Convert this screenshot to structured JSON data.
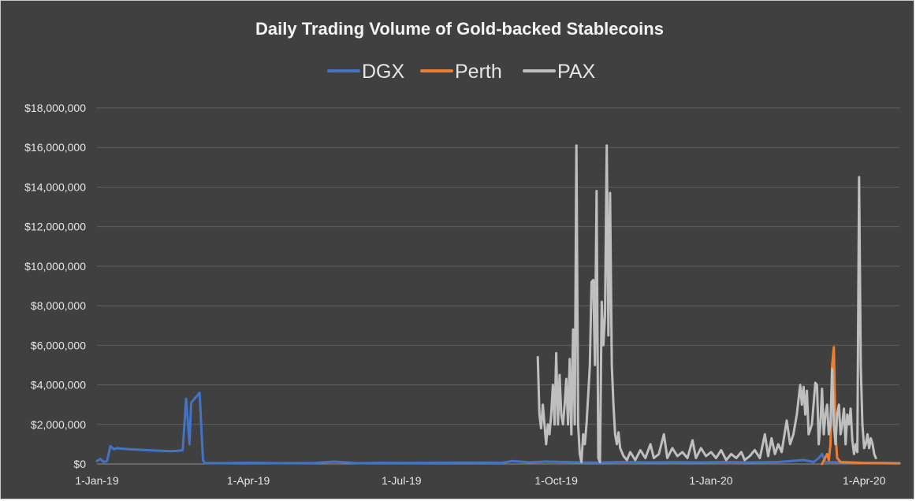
{
  "chart_data": {
    "type": "line",
    "title": "Daily Trading Volume of Gold-backed Stablecoins",
    "xlabel": "",
    "ylabel": "",
    "x_range": [
      "2019-01-01",
      "2020-04-22"
    ],
    "ylim": [
      0,
      18000000
    ],
    "grid": true,
    "legend_position": "top",
    "y_ticks": [
      0,
      2000000,
      4000000,
      6000000,
      8000000,
      10000000,
      12000000,
      14000000,
      16000000,
      18000000
    ],
    "y_tick_labels": [
      "$0",
      "$2,000,000",
      "$4,000,000",
      "$6,000,000",
      "$8,000,000",
      "$10,000,000",
      "$12,000,000",
      "$14,000,000",
      "$16,000,000",
      "$18,000,000"
    ],
    "x_ticks": [
      "2019-01-01",
      "2019-04-01",
      "2019-07-01",
      "2019-10-01",
      "2020-01-01",
      "2020-04-01"
    ],
    "x_tick_labels": [
      "1-Jan-19",
      "1-Apr-19",
      "1-Jul-19",
      "1-Oct-19",
      "1-Jan-20",
      "1-Apr-20"
    ],
    "series": [
      {
        "name": "DGX",
        "color": "#4472C4",
        "points": [
          [
            "2019-01-01",
            150000
          ],
          [
            "2019-01-03",
            250000
          ],
          [
            "2019-01-05",
            100000
          ],
          [
            "2019-01-07",
            150000
          ],
          [
            "2019-01-09",
            900000
          ],
          [
            "2019-01-11",
            750000
          ],
          [
            "2019-01-13",
            800000
          ],
          [
            "2019-01-15",
            780000
          ],
          [
            "2019-01-20",
            750000
          ],
          [
            "2019-01-25",
            730000
          ],
          [
            "2019-01-30",
            700000
          ],
          [
            "2019-02-04",
            680000
          ],
          [
            "2019-02-09",
            660000
          ],
          [
            "2019-02-14",
            650000
          ],
          [
            "2019-02-18",
            660000
          ],
          [
            "2019-02-21",
            700000
          ],
          [
            "2019-02-23",
            3300000
          ],
          [
            "2019-02-25",
            1000000
          ],
          [
            "2019-02-26",
            3100000
          ],
          [
            "2019-02-28",
            3300000
          ],
          [
            "2019-03-02",
            3500000
          ],
          [
            "2019-03-03",
            3600000
          ],
          [
            "2019-03-05",
            200000
          ],
          [
            "2019-03-06",
            50000
          ],
          [
            "2019-03-15",
            40000
          ],
          [
            "2019-04-01",
            60000
          ],
          [
            "2019-04-20",
            40000
          ],
          [
            "2019-05-10",
            50000
          ],
          [
            "2019-05-22",
            120000
          ],
          [
            "2019-06-05",
            40000
          ],
          [
            "2019-06-20",
            60000
          ],
          [
            "2019-07-01",
            50000
          ],
          [
            "2019-07-20",
            60000
          ],
          [
            "2019-08-10",
            70000
          ],
          [
            "2019-08-30",
            60000
          ],
          [
            "2019-09-05",
            150000
          ],
          [
            "2019-09-15",
            80000
          ],
          [
            "2019-09-25",
            120000
          ],
          [
            "2019-10-05",
            100000
          ],
          [
            "2019-10-15",
            80000
          ],
          [
            "2019-10-25",
            70000
          ],
          [
            "2019-11-10",
            100000
          ],
          [
            "2019-11-25",
            80000
          ],
          [
            "2019-12-10",
            90000
          ],
          [
            "2019-12-25",
            80000
          ],
          [
            "2020-01-10",
            100000
          ],
          [
            "2020-01-25",
            80000
          ],
          [
            "2020-02-10",
            100000
          ],
          [
            "2020-02-25",
            200000
          ],
          [
            "2020-03-02",
            100000
          ],
          [
            "2020-03-05",
            300000
          ],
          [
            "2020-03-07",
            500000
          ],
          [
            "2020-03-09",
            100000
          ],
          [
            "2020-03-20",
            80000
          ],
          [
            "2020-04-01",
            60000
          ],
          [
            "2020-04-22",
            50000
          ]
        ]
      },
      {
        "name": "Perth",
        "color": "#ED7D31",
        "points": [
          [
            "2020-03-07",
            0
          ],
          [
            "2020-03-10",
            500000
          ],
          [
            "2020-03-11",
            200000
          ],
          [
            "2020-03-12",
            1000000
          ],
          [
            "2020-03-13",
            5000000
          ],
          [
            "2020-03-14",
            5900000
          ],
          [
            "2020-03-15",
            1500000
          ],
          [
            "2020-03-16",
            300000
          ],
          [
            "2020-03-18",
            100000
          ],
          [
            "2020-04-01",
            50000
          ],
          [
            "2020-04-22",
            30000
          ]
        ]
      },
      {
        "name": "PAX",
        "color": "#BFBFBF",
        "points": [
          [
            "2019-09-20",
            5400000
          ],
          [
            "2019-09-21",
            2500000
          ],
          [
            "2019-09-22",
            1800000
          ],
          [
            "2019-09-23",
            3000000
          ],
          [
            "2019-09-24",
            2000000
          ],
          [
            "2019-09-25",
            1000000
          ],
          [
            "2019-09-26",
            2000000
          ],
          [
            "2019-09-27",
            1500000
          ],
          [
            "2019-09-28",
            2500000
          ],
          [
            "2019-09-29",
            4000000
          ],
          [
            "2019-09-30",
            2000000
          ],
          [
            "2019-10-01",
            5600000
          ],
          [
            "2019-10-02",
            2000000
          ],
          [
            "2019-10-03",
            4500000
          ],
          [
            "2019-10-04",
            2500000
          ],
          [
            "2019-10-05",
            2000000
          ],
          [
            "2019-10-06",
            3000000
          ],
          [
            "2019-10-07",
            4300000
          ],
          [
            "2019-10-08",
            2000000
          ],
          [
            "2019-10-09",
            5300000
          ],
          [
            "2019-10-10",
            1500000
          ],
          [
            "2019-10-11",
            6800000
          ],
          [
            "2019-10-12",
            2000000
          ],
          [
            "2019-10-13",
            16100000
          ],
          [
            "2019-10-14",
            2000000
          ],
          [
            "2019-10-15",
            500000
          ],
          [
            "2019-10-16",
            100000
          ],
          [
            "2019-10-17",
            1500000
          ],
          [
            "2019-10-18",
            1000000
          ],
          [
            "2019-10-19",
            2000000
          ],
          [
            "2019-10-20",
            3500000
          ],
          [
            "2019-10-21",
            5000000
          ],
          [
            "2019-10-22",
            9200000
          ],
          [
            "2019-10-23",
            9300000
          ],
          [
            "2019-10-24",
            5000000
          ],
          [
            "2019-10-25",
            13800000
          ],
          [
            "2019-10-26",
            300000
          ],
          [
            "2019-10-27",
            100000
          ],
          [
            "2019-10-28",
            8200000
          ],
          [
            "2019-10-29",
            6000000
          ],
          [
            "2019-10-30",
            7500000
          ],
          [
            "2019-10-31",
            16100000
          ],
          [
            "2019-11-01",
            6500000
          ],
          [
            "2019-11-02",
            13700000
          ],
          [
            "2019-11-03",
            5000000
          ],
          [
            "2019-11-04",
            3000000
          ],
          [
            "2019-11-05",
            1500000
          ],
          [
            "2019-11-06",
            1000000
          ],
          [
            "2019-11-07",
            1600000
          ],
          [
            "2019-11-08",
            800000
          ],
          [
            "2019-11-10",
            400000
          ],
          [
            "2019-11-12",
            200000
          ],
          [
            "2019-11-14",
            600000
          ],
          [
            "2019-11-17",
            200000
          ],
          [
            "2019-11-20",
            700000
          ],
          [
            "2019-11-23",
            300000
          ],
          [
            "2019-11-26",
            1000000
          ],
          [
            "2019-11-28",
            300000
          ],
          [
            "2019-12-01",
            500000
          ],
          [
            "2019-12-04",
            1500000
          ],
          [
            "2019-12-06",
            300000
          ],
          [
            "2019-12-09",
            800000
          ],
          [
            "2019-12-12",
            400000
          ],
          [
            "2019-12-15",
            600000
          ],
          [
            "2019-12-18",
            300000
          ],
          [
            "2019-12-21",
            1200000
          ],
          [
            "2019-12-23",
            300000
          ],
          [
            "2019-12-26",
            800000
          ],
          [
            "2019-12-29",
            400000
          ],
          [
            "2020-01-01",
            600000
          ],
          [
            "2020-01-04",
            300000
          ],
          [
            "2020-01-07",
            700000
          ],
          [
            "2020-01-10",
            200000
          ],
          [
            "2020-01-13",
            500000
          ],
          [
            "2020-01-16",
            300000
          ],
          [
            "2020-01-19",
            600000
          ],
          [
            "2020-01-21",
            200000
          ],
          [
            "2020-01-24",
            400000
          ],
          [
            "2020-01-27",
            700000
          ],
          [
            "2020-01-30",
            300000
          ],
          [
            "2020-02-02",
            1500000
          ],
          [
            "2020-02-04",
            400000
          ],
          [
            "2020-02-06",
            1300000
          ],
          [
            "2020-02-08",
            500000
          ],
          [
            "2020-02-10",
            1000000
          ],
          [
            "2020-02-12",
            600000
          ],
          [
            "2020-02-15",
            2200000
          ],
          [
            "2020-02-17",
            1000000
          ],
          [
            "2020-02-19",
            1500000
          ],
          [
            "2020-02-21",
            2500000
          ],
          [
            "2020-02-23",
            4000000
          ],
          [
            "2020-02-24",
            3000000
          ],
          [
            "2020-02-25",
            3900000
          ],
          [
            "2020-02-26",
            2500000
          ],
          [
            "2020-02-27",
            3700000
          ],
          [
            "2020-02-28",
            1500000
          ],
          [
            "2020-03-01",
            2000000
          ],
          [
            "2020-03-03",
            4100000
          ],
          [
            "2020-03-04",
            4000000
          ],
          [
            "2020-03-05",
            1000000
          ],
          [
            "2020-03-06",
            2000000
          ],
          [
            "2020-03-07",
            3800000
          ],
          [
            "2020-03-08",
            1500000
          ],
          [
            "2020-03-09",
            2500000
          ],
          [
            "2020-03-10",
            3000000
          ],
          [
            "2020-03-11",
            1500000
          ],
          [
            "2020-03-12",
            2000000
          ],
          [
            "2020-03-13",
            4800000
          ],
          [
            "2020-03-14",
            2000000
          ],
          [
            "2020-03-15",
            1000000
          ],
          [
            "2020-03-16",
            2500000
          ],
          [
            "2020-03-17",
            3000000
          ],
          [
            "2020-03-18",
            1500000
          ],
          [
            "2020-03-19",
            2000000
          ],
          [
            "2020-03-20",
            2800000
          ],
          [
            "2020-03-21",
            1000000
          ],
          [
            "2020-03-22",
            2500000
          ],
          [
            "2020-03-23",
            2000000
          ],
          [
            "2020-03-24",
            2800000
          ],
          [
            "2020-03-25",
            1200000
          ],
          [
            "2020-03-26",
            500000
          ],
          [
            "2020-03-27",
            1000000
          ],
          [
            "2020-03-28",
            600000
          ],
          [
            "2020-03-29",
            14500000
          ],
          [
            "2020-03-30",
            5000000
          ],
          [
            "2020-03-31",
            2000000
          ],
          [
            "2020-04-01",
            800000
          ],
          [
            "2020-04-02",
            1000000
          ],
          [
            "2020-04-03",
            1500000
          ],
          [
            "2020-04-04",
            800000
          ],
          [
            "2020-04-05",
            1300000
          ],
          [
            "2020-04-06",
            1000000
          ],
          [
            "2020-04-07",
            500000
          ],
          [
            "2020-04-08",
            300000
          ]
        ]
      }
    ]
  }
}
